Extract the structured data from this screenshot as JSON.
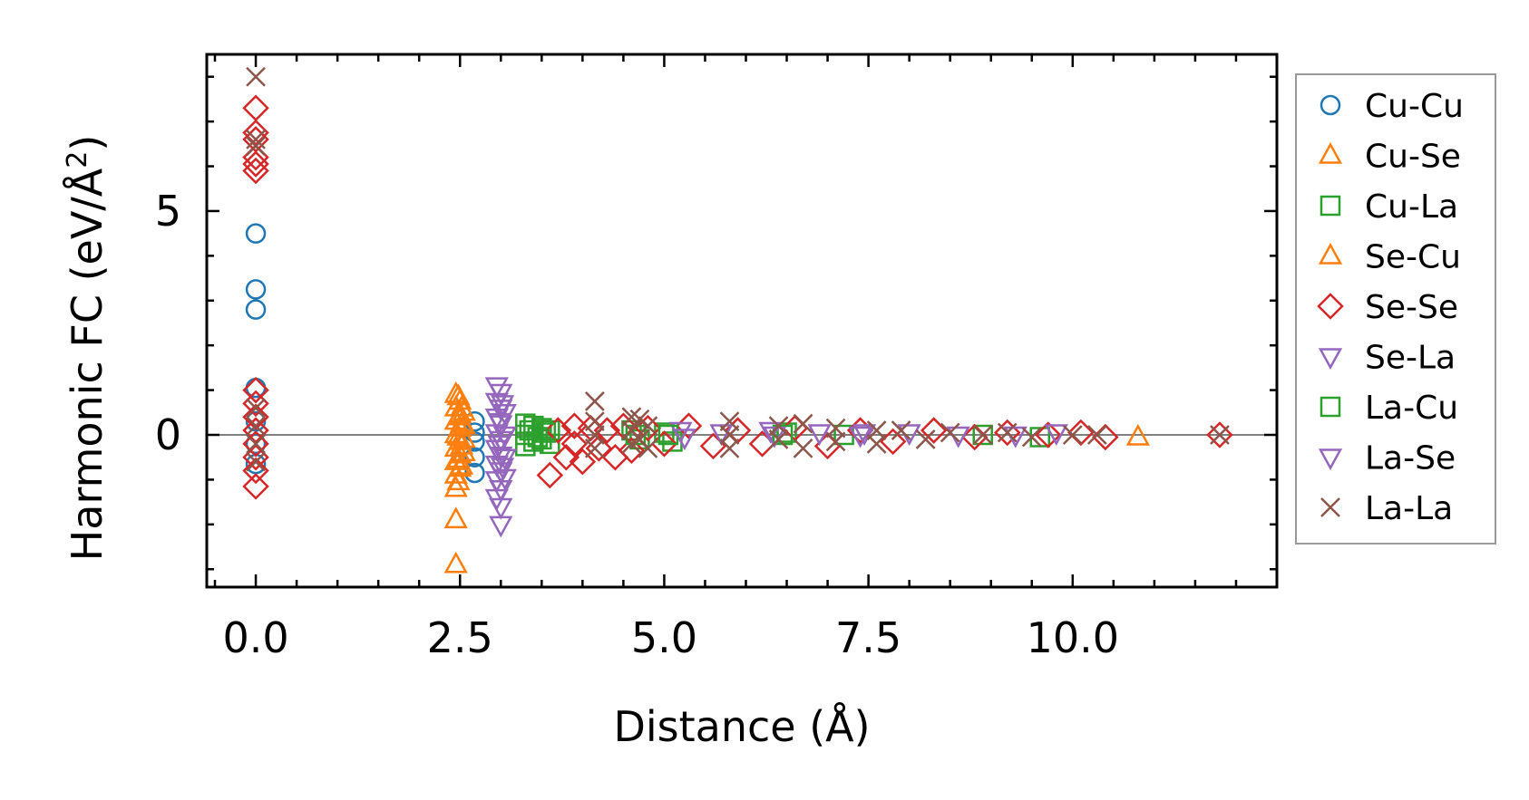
{
  "chart_data": {
    "type": "scatter",
    "xlabel": "Distance (Å)",
    "ylabel_main": "Harmonic FC (eV/Å",
    "ylabel_sup": "2",
    "ylabel_close": ")",
    "xlim": [
      -0.6,
      12.5
    ],
    "ylim": [
      -3.4,
      8.5
    ],
    "xticks": [
      0.0,
      2.5,
      5.0,
      7.5,
      10.0
    ],
    "xtick_labels": [
      "0.0",
      "2.5",
      "5.0",
      "7.5",
      "10.0"
    ],
    "yticks": [
      0,
      5
    ],
    "ytick_labels": [
      "0",
      "5"
    ],
    "zero_line": true,
    "legend_position": "outside-right",
    "series": [
      {
        "name": "Cu-Cu",
        "color": "#1f77b4",
        "marker": "circle",
        "points": [
          [
            0,
            4.5
          ],
          [
            0,
            3.25
          ],
          [
            0,
            2.8
          ],
          [
            0,
            1.05
          ],
          [
            0,
            0.3
          ],
          [
            0,
            -0.2
          ],
          [
            0,
            -0.65
          ],
          [
            2.68,
            0.3
          ],
          [
            2.68,
            0.05
          ],
          [
            2.68,
            -0.15
          ],
          [
            2.68,
            -0.5
          ],
          [
            2.68,
            -0.85
          ]
        ]
      },
      {
        "name": "Cu-Se",
        "color": "#ff7f0e",
        "marker": "triangle-up",
        "points": [
          [
            2.45,
            0.9
          ],
          [
            2.45,
            0.6
          ],
          [
            2.45,
            0.3
          ],
          [
            2.45,
            0.0
          ],
          [
            2.45,
            -0.3
          ],
          [
            2.45,
            -0.6
          ],
          [
            2.45,
            -0.9
          ],
          [
            2.45,
            -1.2
          ],
          [
            2.45,
            -1.9
          ],
          [
            2.45,
            -2.9
          ],
          [
            2.5,
            0.75
          ],
          [
            2.5,
            0.45
          ],
          [
            2.5,
            0.15
          ],
          [
            2.5,
            -0.15
          ],
          [
            2.5,
            -0.45
          ],
          [
            2.5,
            -0.75
          ],
          [
            2.55,
            0.5
          ],
          [
            2.55,
            0.2
          ],
          [
            2.55,
            -0.1
          ],
          [
            2.55,
            -0.4
          ],
          [
            10.8,
            -0.05
          ]
        ]
      },
      {
        "name": "Cu-La",
        "color": "#2ca02c",
        "marker": "square",
        "points": [
          [
            3.3,
            0.25
          ],
          [
            3.3,
            0.0
          ],
          [
            3.3,
            -0.25
          ],
          [
            3.4,
            0.2
          ],
          [
            3.4,
            -0.15
          ],
          [
            3.5,
            0.15
          ],
          [
            3.5,
            -0.1
          ],
          [
            3.6,
            0.1
          ],
          [
            3.6,
            -0.2
          ],
          [
            4.6,
            0.1
          ],
          [
            4.7,
            -0.1
          ],
          [
            5.0,
            0.05
          ],
          [
            5.1,
            -0.15
          ],
          [
            6.5,
            0.05
          ],
          [
            7.2,
            0.0
          ],
          [
            8.9,
            0.0
          ],
          [
            9.6,
            -0.05
          ]
        ]
      },
      {
        "name": "Se-Cu",
        "color": "#ff7f0e",
        "marker": "triangle-up",
        "points": [
          [
            2.48,
            0.85
          ],
          [
            2.48,
            0.4
          ],
          [
            2.48,
            -0.05
          ],
          [
            2.48,
            -0.55
          ],
          [
            2.48,
            -1.05
          ],
          [
            2.52,
            0.6
          ],
          [
            2.52,
            0.25
          ],
          [
            2.52,
            -0.25
          ],
          [
            2.52,
            -0.7
          ]
        ]
      },
      {
        "name": "Se-Se",
        "color": "#d62728",
        "marker": "diamond",
        "points": [
          [
            0,
            7.3
          ],
          [
            0,
            6.75
          ],
          [
            0,
            6.6
          ],
          [
            0,
            6.2
          ],
          [
            0,
            6.05
          ],
          [
            0,
            5.9
          ],
          [
            0,
            1.0
          ],
          [
            0,
            0.7
          ],
          [
            0,
            0.4
          ],
          [
            0,
            0.1
          ],
          [
            0,
            -0.2
          ],
          [
            0,
            -0.5
          ],
          [
            0,
            -0.8
          ],
          [
            0,
            -1.15
          ],
          [
            3.6,
            -0.9
          ],
          [
            3.7,
            0.1
          ],
          [
            3.8,
            -0.5
          ],
          [
            3.9,
            0.2
          ],
          [
            3.9,
            -0.2
          ],
          [
            4.0,
            -0.6
          ],
          [
            4.1,
            0.15
          ],
          [
            4.2,
            -0.3
          ],
          [
            4.3,
            0.1
          ],
          [
            4.4,
            -0.5
          ],
          [
            4.5,
            0.2
          ],
          [
            4.6,
            -0.35
          ],
          [
            4.8,
            0.15
          ],
          [
            5.0,
            -0.2
          ],
          [
            5.3,
            0.2
          ],
          [
            5.6,
            -0.25
          ],
          [
            5.9,
            0.1
          ],
          [
            6.2,
            -0.2
          ],
          [
            6.6,
            0.15
          ],
          [
            7.0,
            -0.25
          ],
          [
            7.4,
            0.1
          ],
          [
            7.8,
            -0.15
          ],
          [
            8.3,
            0.1
          ],
          [
            8.8,
            -0.05
          ],
          [
            9.2,
            0.05
          ],
          [
            9.7,
            0.0
          ],
          [
            10.1,
            0.05
          ],
          [
            10.4,
            -0.05
          ],
          [
            11.8,
            0.0
          ]
        ]
      },
      {
        "name": "Se-La",
        "color": "#9467bd",
        "marker": "triangle-down",
        "points": [
          [
            2.95,
            1.1
          ],
          [
            2.95,
            0.75
          ],
          [
            2.95,
            0.4
          ],
          [
            2.95,
            0.05
          ],
          [
            2.95,
            -0.3
          ],
          [
            2.95,
            -0.65
          ],
          [
            2.95,
            -1.0
          ],
          [
            2.95,
            -1.4
          ],
          [
            3.0,
            0.95
          ],
          [
            3.0,
            0.6
          ],
          [
            3.0,
            0.25
          ],
          [
            3.0,
            -0.1
          ],
          [
            3.0,
            -0.45
          ],
          [
            3.0,
            -0.8
          ],
          [
            3.0,
            -1.2
          ],
          [
            3.0,
            -1.6
          ],
          [
            3.0,
            -2.0
          ],
          [
            3.05,
            0.5
          ],
          [
            3.05,
            0.0
          ],
          [
            3.05,
            -0.5
          ],
          [
            3.05,
            -0.95
          ],
          [
            5.2,
            0.1
          ],
          [
            5.7,
            0.05
          ],
          [
            6.3,
            0.1
          ],
          [
            6.9,
            0.05
          ],
          [
            7.4,
            0.0
          ],
          [
            8.0,
            0.05
          ],
          [
            8.6,
            0.0
          ],
          [
            9.3,
            0.0
          ],
          [
            9.8,
            0.05
          ]
        ]
      },
      {
        "name": "La-Cu",
        "color": "#2ca02c",
        "marker": "square",
        "points": [
          [
            3.35,
            0.1
          ],
          [
            3.45,
            -0.05
          ],
          [
            3.55,
            0.05
          ],
          [
            4.65,
            0.0
          ],
          [
            5.05,
            0.0
          ],
          [
            6.45,
            0.0
          ]
        ]
      },
      {
        "name": "La-Se",
        "color": "#9467bd",
        "marker": "triangle-down",
        "points": [
          [
            2.98,
            0.3
          ],
          [
            2.98,
            -0.2
          ],
          [
            3.02,
            -0.7
          ],
          [
            3.02,
            0.7
          ],
          [
            5.25,
            -0.05
          ],
          [
            6.35,
            0.0
          ],
          [
            7.45,
            0.05
          ]
        ]
      },
      {
        "name": "La-La",
        "color": "#8c564b",
        "marker": "x",
        "points": [
          [
            0,
            8.0
          ],
          [
            0,
            6.6
          ],
          [
            0,
            6.45
          ],
          [
            0,
            0.6
          ],
          [
            0,
            0.2
          ],
          [
            0,
            -0.2
          ],
          [
            0,
            -0.6
          ],
          [
            4.15,
            0.75
          ],
          [
            4.15,
            0.3
          ],
          [
            4.15,
            0.0
          ],
          [
            4.15,
            -0.3
          ],
          [
            4.6,
            0.4
          ],
          [
            4.6,
            0.1
          ],
          [
            4.6,
            -0.2
          ],
          [
            4.7,
            0.35
          ],
          [
            4.7,
            -0.1
          ],
          [
            4.8,
            0.2
          ],
          [
            4.8,
            -0.3
          ],
          [
            5.8,
            0.3
          ],
          [
            5.8,
            0.0
          ],
          [
            5.8,
            -0.3
          ],
          [
            6.4,
            0.2
          ],
          [
            6.4,
            -0.1
          ],
          [
            6.7,
            0.25
          ],
          [
            6.7,
            -0.3
          ],
          [
            7.1,
            0.15
          ],
          [
            7.1,
            -0.15
          ],
          [
            7.6,
            0.1
          ],
          [
            7.6,
            -0.2
          ],
          [
            7.9,
            0.1
          ],
          [
            8.2,
            -0.1
          ],
          [
            8.5,
            0.05
          ],
          [
            8.9,
            0.0
          ],
          [
            9.2,
            0.05
          ],
          [
            9.5,
            -0.05
          ],
          [
            10.0,
            0.0
          ],
          [
            10.3,
            0.0
          ],
          [
            11.8,
            0.0
          ]
        ]
      }
    ]
  }
}
